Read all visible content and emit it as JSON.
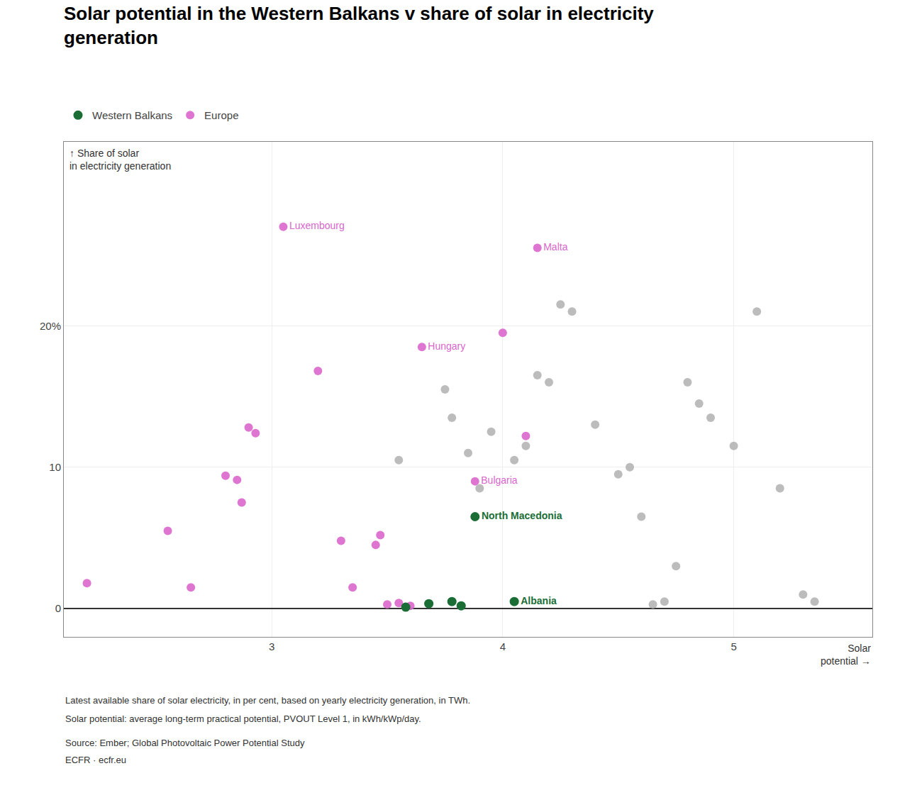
{
  "chart_data": {
    "type": "scatter",
    "title": "Solar potential in the Western Balkans v share of solar in electricity\ngeneration",
    "xlabel": "Solar\npotential →",
    "ylabel": "↑ Share of solar\nin electricity generation",
    "annotations": [
      "Latest available share of solar electricity, in per cent, based on yearly electricity generation, in TWh.",
      "Solar potential: average long-term practical potential, PVOUT Level 1, in kWh/kWp/day.",
      "Source: Ember; Global Photovoltaic Power Potential Study",
      "ECFR · ecfr.eu"
    ],
    "xlim": [
      2.1,
      5.6
    ],
    "ylim": [
      -2,
      33
    ],
    "xticks": [
      3,
      4,
      5
    ],
    "yticks": [
      0,
      10,
      {
        "value": 20,
        "label": "20%"
      }
    ],
    "grid": true,
    "legend": "top",
    "marker": "circle",
    "series": [
      {
        "color": "#b0b0b0",
        "x": [
          3.55,
          3.75,
          3.78,
          3.85,
          3.9,
          3.95,
          4.05,
          4.1,
          4.15,
          4.2,
          4.25,
          4.3,
          4.4,
          4.5,
          4.55,
          4.6,
          4.65,
          4.7,
          4.75,
          4.8,
          4.85,
          4.9,
          5.0,
          5.1,
          5.2,
          5.3,
          5.35
        ],
        "values": [
          10.5,
          15.5,
          13.5,
          11.0,
          8.5,
          12.5,
          10.5,
          11.5,
          16.5,
          16.0,
          21.5,
          21.0,
          13.0,
          9.5,
          10.0,
          6.5,
          0.3,
          0.5,
          3.0,
          16.0,
          14.5,
          13.5,
          11.5,
          21.0,
          8.5,
          1.0,
          0.5
        ]
      },
      {
        "name": "Europe",
        "color": "#d966cc",
        "x": [
          2.2,
          2.55,
          2.65,
          2.8,
          2.85,
          2.87,
          2.9,
          2.93,
          3.05,
          3.2,
          3.3,
          3.35,
          3.45,
          3.47,
          3.5,
          3.55,
          3.6,
          3.65,
          4.0,
          4.1,
          4.15,
          3.88
        ],
        "values": [
          1.8,
          5.5,
          1.5,
          9.4,
          9.1,
          7.5,
          12.8,
          12.4,
          27.0,
          16.8,
          4.8,
          1.5,
          4.5,
          5.2,
          0.3,
          0.4,
          0.2,
          18.5,
          19.5,
          12.2,
          25.5,
          9.0
        ],
        "labels": [
          null,
          null,
          null,
          null,
          null,
          null,
          null,
          null,
          "Luxembourg",
          null,
          null,
          null,
          null,
          null,
          null,
          null,
          null,
          "Hungary",
          null,
          null,
          "Malta",
          "Bulgaria"
        ]
      },
      {
        "name": "Western Balkans",
        "color": "#1a6e35",
        "x": [
          3.58,
          3.68,
          3.78,
          3.82,
          4.05,
          3.88
        ],
        "values": [
          0.1,
          0.35,
          0.5,
          0.2,
          0.5,
          6.5
        ],
        "labels": [
          null,
          null,
          null,
          null,
          "Albania",
          "North Macedonia"
        ]
      }
    ]
  }
}
